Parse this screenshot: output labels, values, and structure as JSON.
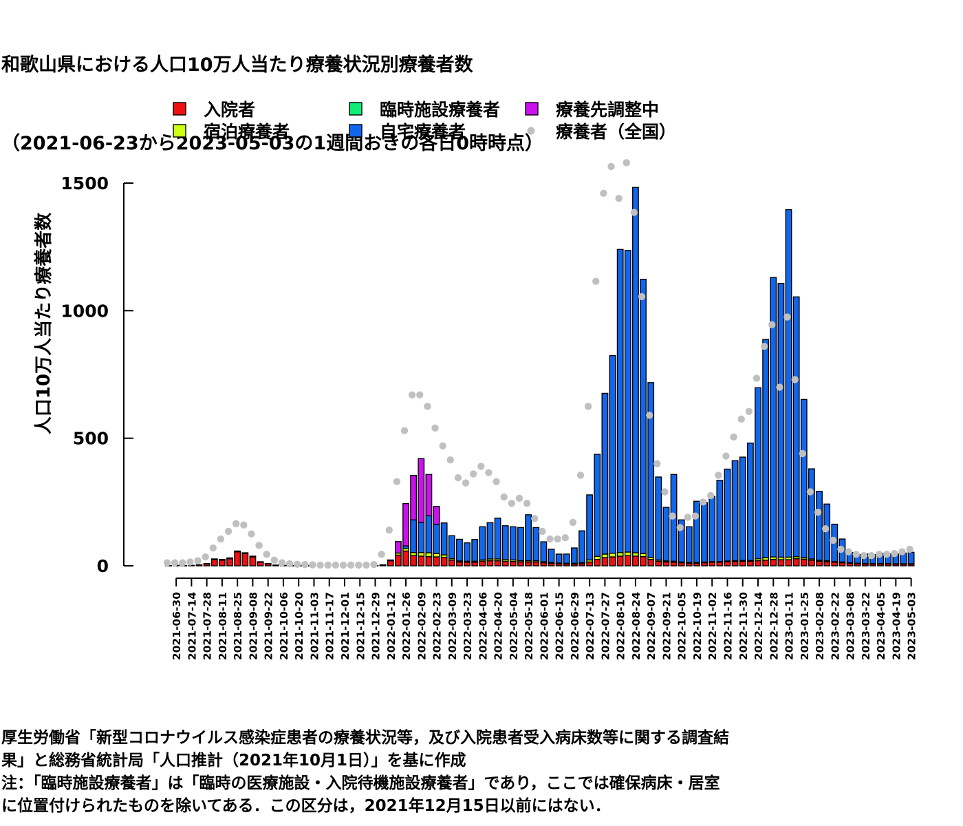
{
  "title": {
    "line1": "和歌山県における人口10万人当たり療養状況別療養者数",
    "line2": "（2021-06-23から2023-05-03の1週間おきの各日0時時点）"
  },
  "notes": {
    "line1": "厚生労働省「新型コロナウイルス感染症患者の療養状況等，及び入院患者受入病床数等に関する調査結",
    "line2": "果」と総務省統計局「人口推計（2021年10月1日）」を基に作成",
    "line3": "注：「臨時施設療養者」は「臨時の医療施設・入院待機施設療養者」であり，ここでは確保病床・居室",
    "line4": "に位置付けられたものを除いてある．この区分は，2021年12月15日以前にはない．"
  },
  "colors": {
    "hospitalized": "#ee1111",
    "hotel": "#ccff11",
    "temporary": "#11ee77",
    "home": "#1166ee",
    "adjusting": "#cc11ee",
    "national": "#c0c0c0"
  },
  "chart_data": {
    "type": "bar",
    "stacked": true,
    "ylabel": "人口10万人当たり療養者数",
    "ylim": [
      0,
      1600
    ],
    "yticks": [
      0,
      500,
      1000,
      1500
    ],
    "legend": [
      {
        "key": "hospitalized",
        "label": "入院者",
        "shape": "square"
      },
      {
        "key": "hotel",
        "label": "宿泊療養者",
        "shape": "square"
      },
      {
        "key": "temporary",
        "label": "臨時施設療養者",
        "shape": "square"
      },
      {
        "key": "home",
        "label": "自宅療養者",
        "shape": "square"
      },
      {
        "key": "adjusting",
        "label": "療養先調整中",
        "shape": "square"
      },
      {
        "key": "national",
        "label": "療養者（全国）",
        "shape": "dot"
      }
    ],
    "x": [
      "2021-06-23",
      "2021-06-30",
      "2021-07-07",
      "2021-07-14",
      "2021-07-21",
      "2021-07-28",
      "2021-08-04",
      "2021-08-11",
      "2021-08-18",
      "2021-08-25",
      "2021-09-01",
      "2021-09-08",
      "2021-09-15",
      "2021-09-22",
      "2021-09-29",
      "2021-10-06",
      "2021-10-13",
      "2021-10-20",
      "2021-10-27",
      "2021-11-03",
      "2021-11-10",
      "2021-11-17",
      "2021-11-24",
      "2021-12-01",
      "2021-12-08",
      "2021-12-15",
      "2021-12-22",
      "2021-12-29",
      "2022-01-05",
      "2022-01-12",
      "2022-01-19",
      "2022-01-26",
      "2022-02-02",
      "2022-02-09",
      "2022-02-16",
      "2022-02-23",
      "2022-03-02",
      "2022-03-09",
      "2022-03-16",
      "2022-03-23",
      "2022-03-30",
      "2022-04-06",
      "2022-04-13",
      "2022-04-20",
      "2022-04-27",
      "2022-05-04",
      "2022-05-11",
      "2022-05-18",
      "2022-05-25",
      "2022-06-01",
      "2022-06-08",
      "2022-06-15",
      "2022-06-22",
      "2022-06-29",
      "2022-07-06",
      "2022-07-13",
      "2022-07-20",
      "2022-07-27",
      "2022-08-03",
      "2022-08-10",
      "2022-08-17",
      "2022-08-24",
      "2022-08-31",
      "2022-09-07",
      "2022-09-14",
      "2022-09-21",
      "2022-09-28",
      "2022-10-05",
      "2022-10-12",
      "2022-10-19",
      "2022-10-26",
      "2022-11-02",
      "2022-11-09",
      "2022-11-16",
      "2022-11-23",
      "2022-11-30",
      "2022-12-07",
      "2022-12-14",
      "2022-12-21",
      "2022-12-28",
      "2023-01-04",
      "2023-01-11",
      "2023-01-18",
      "2023-01-25",
      "2023-02-01",
      "2023-02-08",
      "2023-02-15",
      "2023-02-22",
      "2023-03-01",
      "2023-03-08",
      "2023-03-15",
      "2023-03-22",
      "2023-03-29",
      "2023-04-05",
      "2023-04-12",
      "2023-04-19",
      "2023-04-26",
      "2023-05-03"
    ],
    "xtick_labels": [
      "2021-06-30",
      "2021-07-14",
      "2021-07-28",
      "2021-08-11",
      "2021-08-25",
      "2021-09-08",
      "2021-09-22",
      "2021-10-06",
      "2021-10-20",
      "2021-11-03",
      "2021-11-17",
      "2021-12-01",
      "2021-12-15",
      "2021-12-29",
      "2022-01-12",
      "2022-01-26",
      "2022-02-09",
      "2022-02-23",
      "2022-03-09",
      "2022-03-23",
      "2022-04-06",
      "2022-04-20",
      "2022-05-04",
      "2022-05-18",
      "2022-06-01",
      "2022-06-15",
      "2022-06-29",
      "2022-07-13",
      "2022-07-27",
      "2022-08-10",
      "2022-08-24",
      "2022-09-07",
      "2022-09-21",
      "2022-10-05",
      "2022-10-19",
      "2022-11-02",
      "2022-11-16",
      "2022-11-30",
      "2022-12-14",
      "2022-12-28",
      "2023-01-11",
      "2023-01-25",
      "2023-02-08",
      "2023-02-22",
      "2023-03-08",
      "2023-03-22",
      "2023-04-05",
      "2023-04-19",
      "2023-05-03"
    ],
    "series": [
      {
        "key": "hospitalized",
        "name": "入院者",
        "values": [
          1,
          2,
          1,
          2,
          4,
          8,
          25,
          22,
          28,
          55,
          48,
          35,
          14,
          8,
          3,
          2,
          1,
          1,
          1,
          0,
          0,
          0,
          0,
          0,
          0,
          0,
          0,
          1,
          3,
          20,
          42,
          58,
          40,
          38,
          36,
          35,
          33,
          22,
          15,
          14,
          14,
          18,
          20,
          20,
          18,
          17,
          15,
          15,
          15,
          12,
          10,
          8,
          7,
          7,
          8,
          15,
          25,
          32,
          35,
          38,
          40,
          38,
          36,
          25,
          18,
          15,
          14,
          12,
          10,
          10,
          12,
          14,
          14,
          16,
          17,
          18,
          18,
          20,
          22,
          25,
          24,
          24,
          28,
          26,
          22,
          18,
          16,
          14,
          12,
          10,
          8,
          7,
          7,
          7,
          7,
          6,
          6,
          6
        ]
      },
      {
        "key": "hotel",
        "name": "宿泊療養者",
        "values": [
          0,
          0,
          0,
          0,
          0,
          1,
          2,
          3,
          3,
          3,
          3,
          3,
          2,
          1,
          0,
          0,
          0,
          0,
          0,
          0,
          0,
          0,
          0,
          0,
          0,
          0,
          0,
          0,
          1,
          3,
          8,
          10,
          12,
          14,
          15,
          13,
          10,
          6,
          4,
          4,
          4,
          5,
          7,
          7,
          7,
          6,
          5,
          5,
          5,
          4,
          3,
          3,
          3,
          3,
          4,
          8,
          12,
          14,
          14,
          14,
          14,
          13,
          12,
          8,
          5,
          4,
          4,
          3,
          3,
          3,
          3,
          3,
          3,
          3,
          3,
          3,
          3,
          8,
          10,
          10,
          10,
          10,
          8,
          6,
          5,
          4,
          4,
          3,
          3,
          2,
          2,
          2,
          2,
          2,
          2,
          2,
          2,
          2
        ]
      },
      {
        "key": "temporary",
        "name": "臨時施設療養者",
        "values": [
          0,
          0,
          0,
          0,
          0,
          0,
          0,
          0,
          0,
          0,
          0,
          0,
          0,
          0,
          0,
          0,
          0,
          0,
          0,
          0,
          0,
          0,
          0,
          0,
          0,
          0,
          0,
          0,
          0,
          0,
          0,
          0,
          0,
          0,
          0,
          0,
          0,
          0,
          0,
          0,
          0,
          0,
          0,
          0,
          0,
          0,
          0,
          0,
          0,
          0,
          0,
          0,
          0,
          0,
          0,
          0,
          0,
          0,
          0,
          0,
          0,
          0,
          0,
          0,
          0,
          0,
          0,
          0,
          0,
          0,
          0,
          0,
          0,
          0,
          0,
          0,
          0,
          0,
          0,
          0,
          0,
          0,
          0,
          0,
          0,
          0,
          0,
          0,
          0,
          0,
          0,
          0,
          0,
          0,
          0,
          0,
          0,
          0
        ]
      },
      {
        "key": "home",
        "name": "自宅療養者",
        "values": [
          0,
          0,
          0,
          0,
          0,
          0,
          0,
          0,
          0,
          0,
          0,
          0,
          0,
          0,
          0,
          0,
          0,
          0,
          0,
          0,
          0,
          0,
          0,
          0,
          0,
          0,
          0,
          0,
          0,
          0,
          0,
          10,
          128,
          118,
          145,
          115,
          125,
          90,
          85,
          72,
          85,
          130,
          142,
          160,
          132,
          130,
          130,
          180,
          130,
          78,
          52,
          35,
          36,
          60,
          125,
          255,
          400,
          630,
          775,
          1188,
          1182,
          1432,
          1075,
          685,
          325,
          210,
          340,
          165,
          140,
          240,
          233,
          255,
          318,
          360,
          392,
          405,
          460,
          670,
          855,
          1095,
          1073,
          1362,
          1018,
          620,
          353,
          270,
          222,
          146,
          90,
          40,
          34,
          37,
          35,
          40,
          38,
          38,
          42,
          45
        ]
      },
      {
        "key": "adjusting",
        "name": "療養先調整中",
        "values": [
          0,
          0,
          0,
          0,
          0,
          0,
          0,
          0,
          0,
          0,
          0,
          0,
          0,
          0,
          0,
          0,
          0,
          0,
          0,
          0,
          0,
          0,
          0,
          0,
          0,
          0,
          0,
          0,
          0,
          0,
          45,
          166,
          174,
          250,
          162,
          70,
          0,
          0,
          0,
          0,
          0,
          0,
          0,
          0,
          0,
          0,
          0,
          0,
          0,
          0,
          0,
          0,
          0,
          0,
          0,
          0,
          0,
          0,
          0,
          0,
          0,
          0,
          0,
          0,
          0,
          0,
          0,
          0,
          0,
          0,
          0,
          0,
          0,
          0,
          0,
          0,
          0,
          0,
          0,
          0,
          0,
          0,
          0,
          0,
          0,
          0,
          0,
          0,
          0,
          0,
          0,
          0,
          0,
          0,
          0,
          0,
          0,
          0
        ]
      },
      {
        "key": "national",
        "name": "療養者（全国）",
        "type": "scatter",
        "values": [
          12,
          12,
          12,
          15,
          20,
          35,
          70,
          105,
          135,
          165,
          160,
          125,
          80,
          45,
          22,
          12,
          8,
          6,
          5,
          4,
          3,
          3,
          3,
          3,
          3,
          3,
          3,
          5,
          45,
          140,
          330,
          530,
          670,
          670,
          625,
          540,
          470,
          415,
          345,
          325,
          360,
          390,
          365,
          330,
          270,
          245,
          265,
          245,
          185,
          135,
          105,
          105,
          110,
          170,
          355,
          625,
          1115,
          1460,
          1565,
          1440,
          1580,
          1385,
          1055,
          590,
          400,
          290,
          195,
          150,
          190,
          195,
          250,
          275,
          355,
          430,
          505,
          575,
          605,
          735,
          860,
          945,
          700,
          975,
          730,
          440,
          290,
          210,
          145,
          100,
          65,
          55,
          45,
          40,
          40,
          45,
          45,
          48,
          55,
          65
        ]
      }
    ]
  }
}
